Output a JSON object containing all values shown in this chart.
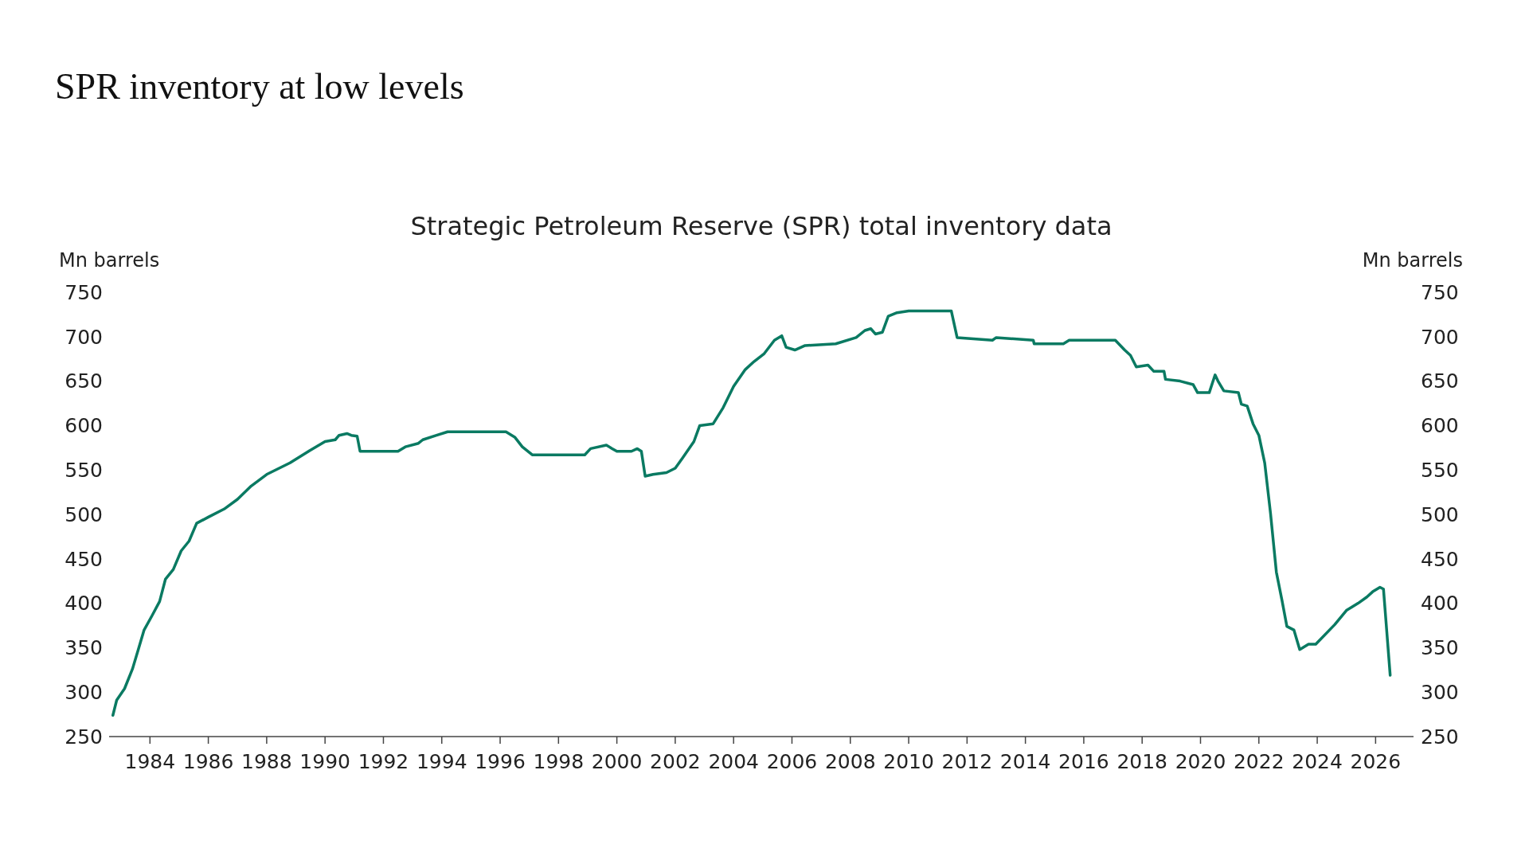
{
  "chart_data": {
    "type": "line",
    "title": "SPR inventory at low levels",
    "subtitle": "Strategic Petroleum Reserve (SPR) total inventory data",
    "ylabel": "Mn barrels",
    "y2label": "Mn barrels",
    "xlim": [
      1982.6,
      2027.3
    ],
    "xticks": [
      1984,
      1986,
      1988,
      1990,
      1992,
      1994,
      1996,
      1998,
      2000,
      2002,
      2004,
      2006,
      2008,
      2010,
      2012,
      2014,
      2016,
      2018,
      2020,
      2022,
      2024,
      2026
    ],
    "ylim": [
      250,
      750
    ],
    "yticks": [
      250,
      300,
      350,
      400,
      450,
      500,
      550,
      600,
      650,
      700,
      750
    ],
    "y2lim": [
      250,
      750
    ],
    "y2ticks": [
      250,
      300,
      350,
      400,
      450,
      500,
      550,
      600,
      650,
      700,
      750
    ],
    "grid": false,
    "marker": "none",
    "line_style": "solid",
    "series": [
      {
        "color": "#0a7a62",
        "x": [
          1982.73,
          1982.86,
          1983.13,
          1983.4,
          1983.6,
          1983.8,
          1984.07,
          1984.33,
          1984.53,
          1984.8,
          1985.07,
          1985.34,
          1985.6,
          1986,
          1986.54,
          1987,
          1987.47,
          1988,
          1988.8,
          1989.48,
          1990,
          1990.35,
          1990.48,
          1990.75,
          1990.9,
          1991.1,
          1991.2,
          1992.5,
          1992.75,
          1993.2,
          1993.35,
          1993.82,
          1994.2,
          1996.2,
          1996.5,
          1996.76,
          1997.1,
          1998.9,
          1999.1,
          1999.64,
          1999.84,
          2000,
          2000.5,
          2000.7,
          2000.84,
          2000.97,
          2001.24,
          2001.7,
          2002,
          2002.24,
          2002.64,
          2002.84,
          2003.3,
          2003.64,
          2004,
          2004.4,
          2004.7,
          2005.05,
          2005.4,
          2005.65,
          2005.8,
          2006.1,
          2006.45,
          2007.5,
          2008.2,
          2008.5,
          2008.7,
          2008.86,
          2009.1,
          2009.3,
          2009.6,
          2010,
          2011.46,
          2011.66,
          2012.87,
          2013,
          2014.27,
          2014.3,
          2015.3,
          2015.5,
          2017.08,
          2017.4,
          2017.6,
          2017.8,
          2018.2,
          2018.4,
          2018.75,
          2018.8,
          2019.3,
          2019.75,
          2019.9,
          2020.3,
          2020.5,
          2020.6,
          2020.8,
          2021.3,
          2021.4,
          2021.6,
          2021.8,
          2022,
          2022.2,
          2022.4,
          2022.6,
          2022.8,
          2022.96,
          2023.2,
          2023.4,
          2023.7,
          2023.95,
          2024.6,
          2025,
          2025.4,
          2025.7,
          2025.9,
          2026.15,
          2026.27,
          2026.5
        ],
        "values": [
          274,
          291,
          304,
          326,
          348,
          370,
          386,
          402,
          427,
          438,
          459,
          470,
          490,
          497,
          506,
          517,
          532,
          545,
          558,
          572,
          582,
          584,
          589,
          591,
          589,
          588,
          571,
          571,
          576,
          580,
          584,
          589,
          593,
          593,
          587,
          576,
          567,
          567,
          574,
          578,
          574,
          571,
          571,
          574,
          571,
          543,
          545,
          547,
          552,
          563,
          582,
          600,
          602,
          620,
          644,
          663,
          672,
          681,
          696,
          701,
          688,
          685,
          690,
          692,
          699,
          707,
          709,
          703,
          705,
          723,
          727,
          729,
          729,
          699,
          696,
          699,
          696,
          692,
          692,
          696,
          696,
          685,
          679,
          666,
          668,
          661,
          661,
          652,
          650,
          646,
          637,
          637,
          657,
          650,
          639,
          637,
          624,
          622,
          602,
          589,
          558,
          501,
          435,
          402,
          374,
          370,
          348,
          354,
          354,
          376,
          392,
          400,
          407,
          413,
          418,
          416,
          319
        ]
      }
    ]
  }
}
